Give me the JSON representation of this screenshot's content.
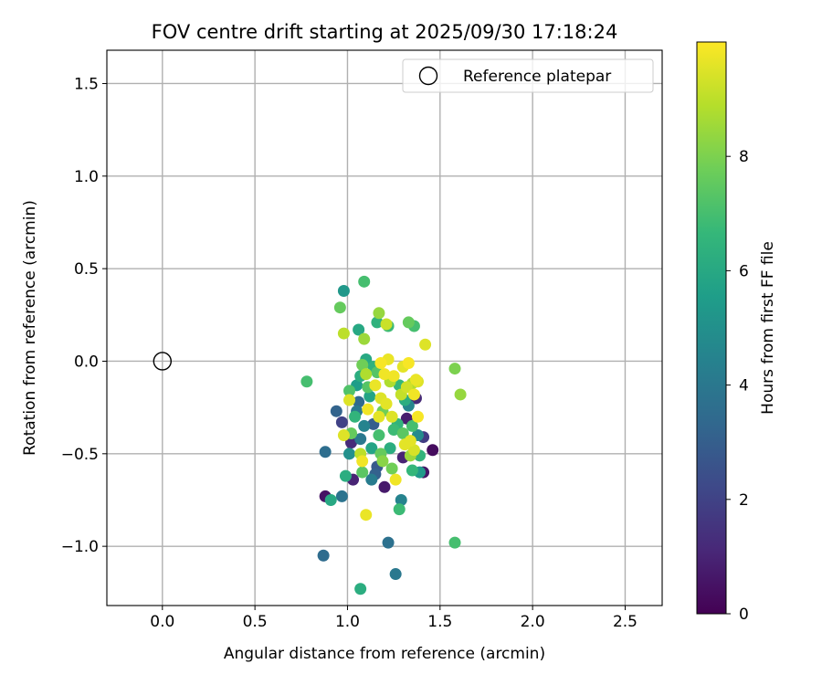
{
  "chart_data": {
    "type": "scatter",
    "title": "FOV centre drift starting at 2025/09/30 17:18:24",
    "xlabel": "Angular distance from reference (arcmin)",
    "ylabel": "Rotation from reference (arcmin)",
    "xlim": [
      -0.3,
      2.7
    ],
    "ylim": [
      -1.32,
      1.68
    ],
    "xticks": [
      0.0,
      0.5,
      1.0,
      1.5,
      2.0,
      2.5
    ],
    "xtick_labels": [
      "0.0",
      "0.5",
      "1.0",
      "1.5",
      "2.0",
      "2.5"
    ],
    "yticks": [
      -1.0,
      -0.5,
      0.0,
      0.5,
      1.0,
      1.5
    ],
    "ytick_labels": [
      "−1.0",
      "−0.5",
      "0.0",
      "0.5",
      "1.0",
      "1.5"
    ],
    "grid": true,
    "legend": {
      "position": "top-right",
      "entries": [
        "Reference platepar"
      ]
    },
    "reference_point": {
      "x": 0.0,
      "y": 0.0,
      "label": "Reference platepar"
    },
    "colorbar": {
      "label": "Hours from first FF file",
      "range": [
        0,
        10
      ],
      "ticks": [
        0,
        2,
        4,
        6,
        8
      ],
      "tick_labels": [
        "0",
        "2",
        "4",
        "6",
        "8"
      ],
      "colormap": [
        "#440154",
        "#482878",
        "#3e4989",
        "#31688e",
        "#26828e",
        "#1f9e89",
        "#35b779",
        "#6ece58",
        "#b5de2b",
        "#fde725"
      ]
    },
    "points": [
      {
        "x": 0.78,
        "y": -0.11,
        "h": 7.0
      },
      {
        "x": 0.87,
        "y": -1.05,
        "h": 3.5
      },
      {
        "x": 0.88,
        "y": -0.49,
        "h": 3.6
      },
      {
        "x": 0.88,
        "y": -0.73,
        "h": 0.5
      },
      {
        "x": 0.91,
        "y": -0.75,
        "h": 6.0
      },
      {
        "x": 0.94,
        "y": -0.27,
        "h": 3.2
      },
      {
        "x": 0.96,
        "y": 0.29,
        "h": 7.6
      },
      {
        "x": 0.97,
        "y": -0.73,
        "h": 3.8
      },
      {
        "x": 0.97,
        "y": -0.33,
        "h": 2.0
      },
      {
        "x": 0.98,
        "y": 0.15,
        "h": 9.0
      },
      {
        "x": 0.98,
        "y": 0.38,
        "h": 5.3
      },
      {
        "x": 0.98,
        "y": -0.4,
        "h": 9.5
      },
      {
        "x": 0.99,
        "y": -0.62,
        "h": 6.2
      },
      {
        "x": 1.01,
        "y": -0.16,
        "h": 7.2
      },
      {
        "x": 1.01,
        "y": -0.21,
        "h": 9.5
      },
      {
        "x": 1.01,
        "y": -0.5,
        "h": 5.0
      },
      {
        "x": 1.02,
        "y": -0.44,
        "h": 1.2
      },
      {
        "x": 1.02,
        "y": -0.39,
        "h": 7.6
      },
      {
        "x": 1.03,
        "y": -0.64,
        "h": 1.0
      },
      {
        "x": 1.04,
        "y": -0.3,
        "h": 6.5
      },
      {
        "x": 1.05,
        "y": -0.27,
        "h": 4.0
      },
      {
        "x": 1.05,
        "y": -0.13,
        "h": 5.5
      },
      {
        "x": 1.06,
        "y": 0.17,
        "h": 6.0
      },
      {
        "x": 1.06,
        "y": -0.22,
        "h": 3.4
      },
      {
        "x": 1.07,
        "y": -0.5,
        "h": 9.0
      },
      {
        "x": 1.07,
        "y": -0.08,
        "h": 6.2
      },
      {
        "x": 1.07,
        "y": -1.23,
        "h": 6.2
      },
      {
        "x": 1.07,
        "y": -0.42,
        "h": 4.0
      },
      {
        "x": 1.08,
        "y": -0.02,
        "h": 7.8
      },
      {
        "x": 1.08,
        "y": -0.54,
        "h": 9.8
      },
      {
        "x": 1.08,
        "y": -0.6,
        "h": 7.4
      },
      {
        "x": 1.09,
        "y": 0.43,
        "h": 7.0
      },
      {
        "x": 1.09,
        "y": -0.35,
        "h": 4.5
      },
      {
        "x": 1.09,
        "y": 0.12,
        "h": 8.5
      },
      {
        "x": 1.1,
        "y": -0.83,
        "h": 9.7
      },
      {
        "x": 1.1,
        "y": 0.01,
        "h": 6.0
      },
      {
        "x": 1.1,
        "y": -0.07,
        "h": 8.8
      },
      {
        "x": 1.11,
        "y": -0.26,
        "h": 9.8
      },
      {
        "x": 1.11,
        "y": -0.14,
        "h": 7.3
      },
      {
        "x": 1.12,
        "y": -0.19,
        "h": 5.8
      },
      {
        "x": 1.13,
        "y": -0.64,
        "h": 4.2
      },
      {
        "x": 1.13,
        "y": -0.47,
        "h": 5.8
      },
      {
        "x": 1.14,
        "y": -0.03,
        "h": 6.4
      },
      {
        "x": 1.14,
        "y": -0.34,
        "h": 3.0
      },
      {
        "x": 1.15,
        "y": -0.61,
        "h": 3.1
      },
      {
        "x": 1.15,
        "y": -0.13,
        "h": 9.7
      },
      {
        "x": 1.16,
        "y": -0.06,
        "h": 7.3
      },
      {
        "x": 1.16,
        "y": 0.21,
        "h": 6.4
      },
      {
        "x": 1.16,
        "y": -0.57,
        "h": 2.8
      },
      {
        "x": 1.17,
        "y": 0.26,
        "h": 8.4
      },
      {
        "x": 1.17,
        "y": -0.3,
        "h": 9.6
      },
      {
        "x": 1.17,
        "y": -0.4,
        "h": 7.0
      },
      {
        "x": 1.18,
        "y": -0.01,
        "h": 9.9
      },
      {
        "x": 1.18,
        "y": -0.2,
        "h": 9.5
      },
      {
        "x": 1.18,
        "y": -0.5,
        "h": 7.6
      },
      {
        "x": 1.19,
        "y": -0.27,
        "h": 7.8
      },
      {
        "x": 1.19,
        "y": -0.54,
        "h": 8.2
      },
      {
        "x": 1.2,
        "y": -0.07,
        "h": 9.8
      },
      {
        "x": 1.2,
        "y": -0.68,
        "h": 0.7
      },
      {
        "x": 1.21,
        "y": 0.2,
        "h": 9.2
      },
      {
        "x": 1.21,
        "y": -0.23,
        "h": 9.6
      },
      {
        "x": 1.22,
        "y": -0.98,
        "h": 3.7
      },
      {
        "x": 1.22,
        "y": 0.01,
        "h": 9.7
      },
      {
        "x": 1.22,
        "y": 0.19,
        "h": 6.8
      },
      {
        "x": 1.23,
        "y": -0.47,
        "h": 6.2
      },
      {
        "x": 1.23,
        "y": -0.11,
        "h": 8.8
      },
      {
        "x": 1.24,
        "y": -0.3,
        "h": 9.5
      },
      {
        "x": 1.24,
        "y": -0.58,
        "h": 7.8
      },
      {
        "x": 1.25,
        "y": -0.08,
        "h": 9.8
      },
      {
        "x": 1.25,
        "y": -0.37,
        "h": 6.8
      },
      {
        "x": 1.26,
        "y": -0.64,
        "h": 9.8
      },
      {
        "x": 1.26,
        "y": -1.15,
        "h": 4.0
      },
      {
        "x": 1.27,
        "y": -0.34,
        "h": 6.5
      },
      {
        "x": 1.28,
        "y": -0.13,
        "h": 6.6
      },
      {
        "x": 1.28,
        "y": -0.8,
        "h": 6.8
      },
      {
        "x": 1.29,
        "y": -0.75,
        "h": 4.5
      },
      {
        "x": 1.29,
        "y": -0.18,
        "h": 9.1
      },
      {
        "x": 1.3,
        "y": -0.52,
        "h": 1.0
      },
      {
        "x": 1.3,
        "y": -0.03,
        "h": 9.6
      },
      {
        "x": 1.3,
        "y": -0.39,
        "h": 7.4
      },
      {
        "x": 1.31,
        "y": -0.45,
        "h": 9.6
      },
      {
        "x": 1.31,
        "y": -0.21,
        "h": 6.2
      },
      {
        "x": 1.32,
        "y": -0.14,
        "h": 9.3
      },
      {
        "x": 1.32,
        "y": -0.31,
        "h": 0.8
      },
      {
        "x": 1.33,
        "y": -0.01,
        "h": 9.9
      },
      {
        "x": 1.33,
        "y": -0.24,
        "h": 4.6
      },
      {
        "x": 1.33,
        "y": 0.21,
        "h": 7.6
      },
      {
        "x": 1.34,
        "y": -0.51,
        "h": 8.5
      },
      {
        "x": 1.34,
        "y": -0.43,
        "h": 9.6
      },
      {
        "x": 1.35,
        "y": -0.12,
        "h": 8.8
      },
      {
        "x": 1.35,
        "y": -0.35,
        "h": 7.0
      },
      {
        "x": 1.35,
        "y": -0.59,
        "h": 6.6
      },
      {
        "x": 1.36,
        "y": -0.18,
        "h": 9.8
      },
      {
        "x": 1.36,
        "y": -0.48,
        "h": 9.4
      },
      {
        "x": 1.36,
        "y": 0.19,
        "h": 7.0
      },
      {
        "x": 1.37,
        "y": -0.2,
        "h": 1.2
      },
      {
        "x": 1.37,
        "y": -0.1,
        "h": 9.7
      },
      {
        "x": 1.38,
        "y": -0.4,
        "h": 4.8
      },
      {
        "x": 1.38,
        "y": -0.3,
        "h": 9.9
      },
      {
        "x": 1.38,
        "y": -0.11,
        "h": 9.5
      },
      {
        "x": 1.39,
        "y": -0.6,
        "h": 5.4
      },
      {
        "x": 1.39,
        "y": -0.51,
        "h": 6.5
      },
      {
        "x": 1.41,
        "y": -0.6,
        "h": 0.6
      },
      {
        "x": 1.41,
        "y": -0.41,
        "h": 1.8
      },
      {
        "x": 1.42,
        "y": 0.09,
        "h": 9.5
      },
      {
        "x": 1.46,
        "y": -0.48,
        "h": 0.3
      },
      {
        "x": 1.58,
        "y": -0.04,
        "h": 8.0
      },
      {
        "x": 1.58,
        "y": -0.98,
        "h": 7.0
      },
      {
        "x": 1.61,
        "y": -0.18,
        "h": 8.4
      }
    ]
  }
}
